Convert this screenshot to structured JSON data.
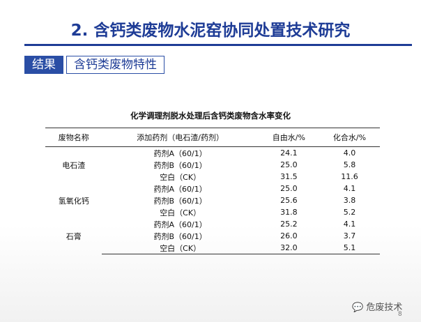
{
  "header": {
    "title": "2. 含钙类废物水泥窑协同处置技术研究",
    "tag": "结果",
    "subject": "含钙类废物特性"
  },
  "table": {
    "caption": "化学调理剂脱水处理后含钙类废物含水率变化",
    "columns": [
      "废物名称",
      "添加药剂（电石渣/药剂）",
      "自由水/%",
      "化合水/%"
    ],
    "groups": [
      {
        "name": "电石渣",
        "rows": [
          [
            "药剂A（60/1）",
            "24.1",
            "4.0"
          ],
          [
            "药剂B（60/1）",
            "25.0",
            "5.8"
          ],
          [
            "空白（CK）",
            "31.5",
            "11.6"
          ]
        ]
      },
      {
        "name": "氢氧化钙",
        "rows": [
          [
            "药剂A（60/1）",
            "25.0",
            "4.1"
          ],
          [
            "药剂B（60/1）",
            "25.6",
            "3.8"
          ],
          [
            "空白（CK）",
            "31.8",
            "5.2"
          ]
        ]
      },
      {
        "name": "石膏",
        "rows": [
          [
            "药剂A（60/1）",
            "25.2",
            "4.1"
          ],
          [
            "药剂B（60/1）",
            "26.0",
            "3.7"
          ],
          [
            "空白（CK）",
            "32.0",
            "5.1"
          ]
        ]
      }
    ]
  },
  "watermark": "危废技术",
  "page_number": "8"
}
